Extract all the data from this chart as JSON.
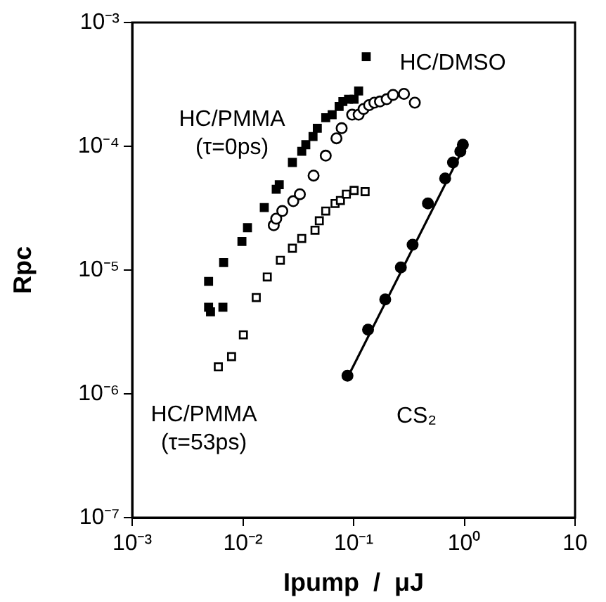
{
  "chart_data": {
    "type": "scatter",
    "xlabel": "Ipump  /  μJ",
    "ylabel": "Rpc",
    "log": "xy",
    "grid": false,
    "legend": false,
    "xlim": [
      0.001,
      10
    ],
    "ylim": [
      1e-07,
      0.001
    ],
    "xticks": [
      {
        "value": 0.001,
        "label": "10⁻³"
      },
      {
        "value": 0.01,
        "label": "10⁻²"
      },
      {
        "value": 0.1,
        "label": "10⁻¹"
      },
      {
        "value": 1,
        "label": "10⁰"
      },
      10
    ],
    "yticks": [
      {
        "value": 1e-07,
        "label": "10⁻⁷"
      },
      {
        "value": 1e-06,
        "label": "10⁻⁶"
      },
      {
        "value": 1e-05,
        "label": "10⁻⁵"
      },
      {
        "value": 0.0001,
        "label": "10⁻⁴"
      },
      {
        "value": 0.001,
        "label": "10⁻³"
      }
    ],
    "series": [
      {
        "name": "HC/PMMA (τ=0ps)",
        "marker": "square",
        "color": "#000000",
        "x": [
          0.0049,
          0.0049,
          0.0051,
          0.0066,
          0.0067,
          0.0098,
          0.011,
          0.0156,
          0.02,
          0.0213,
          0.028,
          0.034,
          0.037,
          0.043,
          0.047,
          0.056,
          0.064,
          0.074,
          0.08,
          0.09,
          0.101,
          0.111,
          0.13
        ],
        "values": [
          8.1e-06,
          5e-06,
          4.6e-06,
          5e-06,
          1.15e-05,
          1.7e-05,
          2.2e-05,
          3.2e-05,
          4.5e-05,
          4.9e-05,
          7.4e-05,
          9.1e-05,
          0.000103,
          0.00012,
          0.00014,
          0.00017,
          0.00018,
          0.00021,
          0.00023,
          0.00024,
          0.00024,
          0.00028,
          0.00053
        ]
      },
      {
        "name": "HC/DMSO",
        "marker": "circle",
        "color": "#000000",
        "x": [
          0.019,
          0.02,
          0.0227,
          0.0285,
          0.0327,
          0.0435,
          0.056,
          0.07,
          0.078,
          0.097,
          0.111,
          0.123,
          0.138,
          0.154,
          0.173,
          0.199,
          0.227,
          0.285,
          0.357
        ],
        "values": [
          2.3e-05,
          2.6e-05,
          3e-05,
          3.6e-05,
          4.1e-05,
          5.8e-05,
          8.4e-05,
          0.000116,
          0.00014,
          0.00018,
          0.00018,
          0.0002,
          0.000215,
          0.000225,
          0.00023,
          0.00024,
          0.00026,
          0.000265,
          0.000225
        ]
      },
      {
        "name": "HC/PMMA (τ=53ps)",
        "marker": "square",
        "color": "#000000",
        "x": [
          0.006,
          0.0079,
          0.0101,
          0.0132,
          0.0166,
          0.0218,
          0.028,
          0.034,
          0.0448,
          0.049,
          0.056,
          0.068,
          0.076,
          0.086,
          0.101,
          0.127
        ],
        "values": [
          1.65e-06,
          2e-06,
          3e-06,
          6e-06,
          8.8e-06,
          1.2e-05,
          1.5e-05,
          1.8e-05,
          2.1e-05,
          2.5e-05,
          3e-05,
          3.45e-05,
          3.65e-05,
          4.1e-05,
          4.4e-05,
          4.3e-05
        ]
      },
      {
        "name": "CS₂",
        "marker": "circle",
        "color": "#000000",
        "x": [
          0.088,
          0.135,
          0.193,
          0.267,
          0.341,
          0.469,
          0.671,
          0.79,
          0.92,
          0.97
        ],
        "values": [
          1.4e-06,
          3.3e-06,
          5.8e-06,
          1.05e-05,
          1.6e-05,
          3.45e-05,
          5.5e-05,
          7.4e-05,
          9.1e-05,
          0.000103
        ]
      },
      {
        "type": "line",
        "marker": "none",
        "line_style": "solid",
        "color": "#000000",
        "x": [
          0.088,
          1.0
        ],
        "values": [
          1.35e-06,
          0.0001
        ]
      }
    ]
  }
}
